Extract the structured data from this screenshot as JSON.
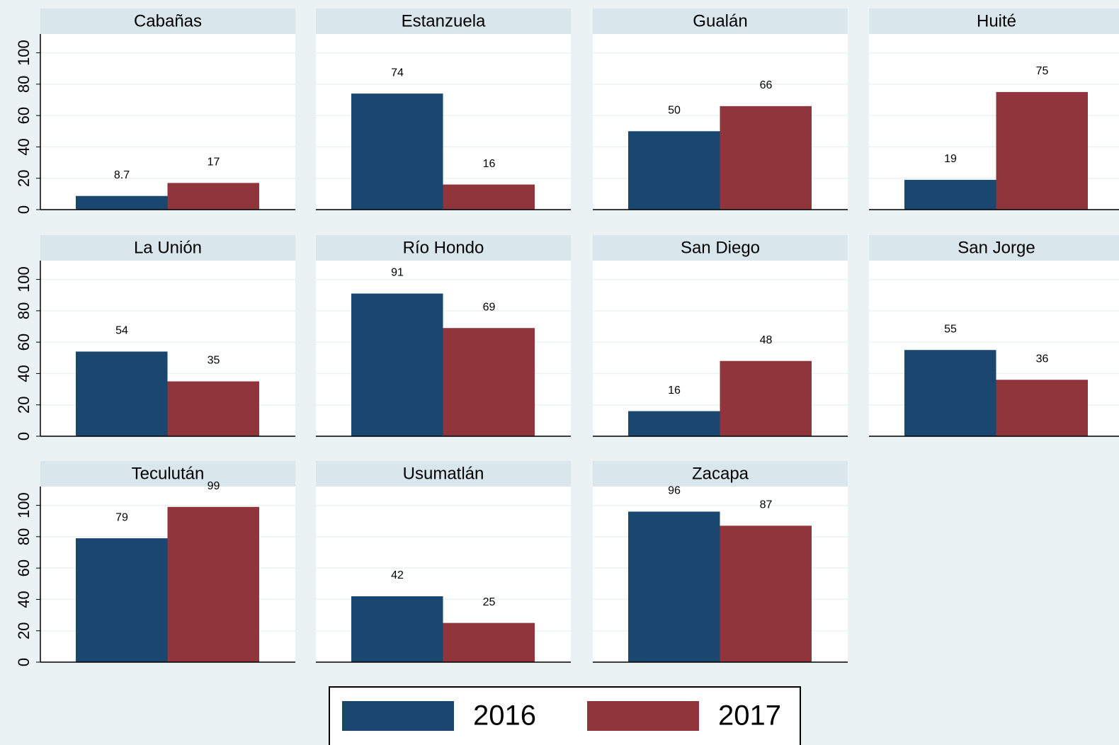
{
  "chart_data": {
    "type": "bar",
    "categories": [
      "Cabañas",
      "Estanzuela",
      "Gualán",
      "Huité",
      "La Unión",
      "Río Hondo",
      "San Diego",
      "San Jorge",
      "Teculután",
      "Usumatlán",
      "Zacapa"
    ],
    "series": [
      {
        "name": "2016",
        "color": "#1a476f",
        "values": [
          8.7,
          74,
          50,
          19,
          54,
          91,
          16,
          55,
          79,
          42,
          96
        ]
      },
      {
        "name": "2017",
        "color": "#90353b",
        "values": [
          17,
          16,
          66,
          75,
          35,
          69,
          48,
          36,
          99,
          25,
          87
        ]
      }
    ],
    "ylim": [
      0,
      112
    ],
    "yticks": [
      0,
      20,
      40,
      60,
      80,
      100
    ],
    "grid": true,
    "legend": "bottom"
  }
}
